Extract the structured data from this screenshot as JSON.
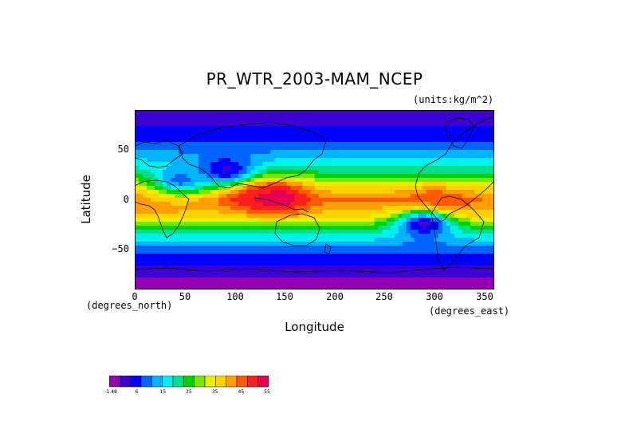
{
  "chart_data": {
    "type": "heatmap",
    "title": "PR_WTR_2003-MAM_NCEP",
    "units": "(units:kg/m^2)",
    "xlabel": "Longitude",
    "ylabel": "Latitude",
    "x_units": "(degrees_east)",
    "y_units": "(degrees_north)",
    "xlim": [
      0,
      360
    ],
    "ylim": [
      -90,
      90
    ],
    "x_ticks": [
      "0",
      "50",
      "100",
      "150",
      "200",
      "250",
      "300",
      "350"
    ],
    "y_ticks": [
      "50",
      "0",
      "−50"
    ],
    "x_tick_values": [
      0,
      50,
      100,
      150,
      200,
      250,
      300,
      350
    ],
    "y_tick_values": [
      50,
      0,
      -50
    ],
    "colorbar": {
      "labels": [
        "-1.48",
        "6",
        "15",
        "25",
        "35",
        "45",
        "55"
      ],
      "colors": [
        "#9400b4",
        "#3c00d2",
        "#0000ff",
        "#0064ff",
        "#00b4ff",
        "#00f0f0",
        "#00e08c",
        "#00d200",
        "#78e600",
        "#e6f000",
        "#ffd200",
        "#ffa000",
        "#ff5a00",
        "#ff1e1e",
        "#e60050"
      ]
    },
    "latitude_profile_deg_kgm2": [
      [
        90,
        2
      ],
      [
        75,
        6
      ],
      [
        60,
        9
      ],
      [
        45,
        15
      ],
      [
        30,
        23
      ],
      [
        15,
        35
      ],
      [
        0,
        44
      ],
      [
        -15,
        38
      ],
      [
        -30,
        25
      ],
      [
        -45,
        14
      ],
      [
        -60,
        8
      ],
      [
        -70,
        5
      ],
      [
        -80,
        2
      ],
      [
        -90,
        1
      ]
    ],
    "features": [
      {
        "lon": 145,
        "lat": 2,
        "value": 54
      },
      {
        "lon": 120,
        "lat": 5,
        "value": 52
      },
      {
        "lon": 300,
        "lat": -5,
        "value": 50
      },
      {
        "lon": 25,
        "lat": 0,
        "value": 42
      },
      {
        "lon": 90,
        "lat": 30,
        "value": 5
      },
      {
        "lon": 290,
        "lat": -25,
        "value": 5
      },
      {
        "lon": 45,
        "lat": 20,
        "value": 12
      }
    ]
  }
}
